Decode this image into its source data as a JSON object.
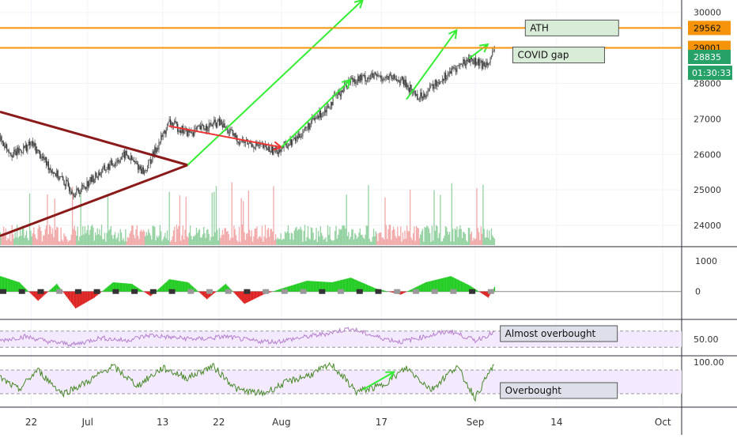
{
  "chart_data": [
    {
      "panel": "price",
      "type": "candlestick",
      "ylim": [
        23400,
        30350
      ],
      "y_ticks": [
        24000,
        25000,
        26000,
        27000,
        28000,
        29000,
        30000
      ],
      "x_ticks": [
        {
          "label": "22",
          "date": "2020-06-22"
        },
        {
          "label": "Jul",
          "date": "2020-07-01"
        },
        {
          "label": "13",
          "date": "2020-07-13"
        },
        {
          "label": "22",
          "date": "2020-07-22"
        },
        {
          "label": "Aug",
          "date": "2020-08-01"
        },
        {
          "label": "17",
          "date": "2020-08-17"
        },
        {
          "label": "Sep",
          "date": "2020-09-01"
        },
        {
          "label": "14",
          "date": "2020-09-14"
        },
        {
          "label": "Oct",
          "date": "2020-10-01"
        }
      ],
      "xlim": [
        "2020-06-17",
        "2020-10-04"
      ],
      "price_path": [
        {
          "date": "2020-06-17",
          "value": 26400
        },
        {
          "date": "2020-06-19",
          "value": 26000
        },
        {
          "date": "2020-06-22",
          "value": 26300
        },
        {
          "date": "2020-06-25",
          "value": 25600
        },
        {
          "date": "2020-06-29",
          "value": 24900
        },
        {
          "date": "2020-07-03",
          "value": 25500
        },
        {
          "date": "2020-07-07",
          "value": 26000
        },
        {
          "date": "2020-07-10",
          "value": 25500
        },
        {
          "date": "2020-07-12",
          "value": 26200
        },
        {
          "date": "2020-07-14",
          "value": 26900
        },
        {
          "date": "2020-07-17",
          "value": 26600
        },
        {
          "date": "2020-07-22",
          "value": 26900
        },
        {
          "date": "2020-07-25",
          "value": 26400
        },
        {
          "date": "2020-07-31",
          "value": 26100
        },
        {
          "date": "2020-08-03",
          "value": 26400
        },
        {
          "date": "2020-08-08",
          "value": 27300
        },
        {
          "date": "2020-08-12",
          "value": 28100
        },
        {
          "date": "2020-08-16",
          "value": 28200
        },
        {
          "date": "2020-08-20",
          "value": 28100
        },
        {
          "date": "2020-08-23",
          "value": 27600
        },
        {
          "date": "2020-08-27",
          "value": 28200
        },
        {
          "date": "2020-08-31",
          "value": 28700
        },
        {
          "date": "2020-09-02",
          "value": 28500
        },
        {
          "date": "2020-09-04",
          "value": 28835
        }
      ],
      "horizontal_levels": [
        {
          "value": 29562,
          "label": "29562",
          "color": "#f5930a"
        },
        {
          "value": 29001,
          "label": "29001",
          "color": "#f5930a"
        }
      ],
      "current_price": {
        "value": 28835,
        "label": "28835",
        "color": "#26a269"
      },
      "countdown": {
        "label": "01:30:33",
        "color": "#26a269"
      },
      "annotations": [
        {
          "text": "ATH",
          "date": "2020-09-09",
          "value": 29562
        },
        {
          "text": "COVID gap",
          "date": "2020-09-07",
          "value": 28800
        }
      ],
      "triangle": {
        "color": "#8b1a1a",
        "upper": [
          {
            "date": "2020-06-17",
            "value": 27200
          },
          {
            "date": "2020-07-17",
            "value": 25700
          }
        ],
        "lower": [
          {
            "date": "2020-06-17",
            "value": 23700
          },
          {
            "date": "2020-07-17",
            "value": 25700
          }
        ]
      },
      "arrows": [
        {
          "color": "#33ee33",
          "from": {
            "date": "2020-07-17",
            "value": 25700
          },
          "to": {
            "date": "2020-08-14",
            "value": 30350
          }
        },
        {
          "color": "#ee3333",
          "from": {
            "date": "2020-07-14",
            "value": 26800
          },
          "to": {
            "date": "2020-08-01",
            "value": 26200
          }
        },
        {
          "color": "#33ee33",
          "from": {
            "date": "2020-08-01",
            "value": 26200
          },
          "to": {
            "date": "2020-08-12",
            "value": 28100
          }
        },
        {
          "color": "#33ee33",
          "from": {
            "date": "2020-08-21",
            "value": 27550
          },
          "to": {
            "date": "2020-08-29",
            "value": 29500
          }
        },
        {
          "color": "#33ee33",
          "from": {
            "date": "2020-08-31",
            "value": 28700
          },
          "to": {
            "date": "2020-09-03",
            "value": 29100
          }
        }
      ],
      "volume_color_up": "#80c990",
      "volume_color_down": "#ef9a9a"
    },
    {
      "panel": "momentum",
      "type": "histogram",
      "ylim": [
        -700,
        1200
      ],
      "y_ticks": [
        0,
        1000
      ],
      "series": [
        {
          "date": "2020-06-17",
          "value": 500
        },
        {
          "date": "2020-06-20",
          "value": 300
        },
        {
          "date": "2020-06-23",
          "value": -300
        },
        {
          "date": "2020-06-26",
          "value": 250
        },
        {
          "date": "2020-06-29",
          "value": -550
        },
        {
          "date": "2020-07-02",
          "value": -200
        },
        {
          "date": "2020-07-05",
          "value": 300
        },
        {
          "date": "2020-07-08",
          "value": 250
        },
        {
          "date": "2020-07-11",
          "value": -150
        },
        {
          "date": "2020-07-14",
          "value": 400
        },
        {
          "date": "2020-07-17",
          "value": 300
        },
        {
          "date": "2020-07-20",
          "value": -250
        },
        {
          "date": "2020-07-23",
          "value": 250
        },
        {
          "date": "2020-07-26",
          "value": -400
        },
        {
          "date": "2020-07-29",
          "value": -100
        },
        {
          "date": "2020-08-01",
          "value": 100
        },
        {
          "date": "2020-08-05",
          "value": 350
        },
        {
          "date": "2020-08-09",
          "value": 300
        },
        {
          "date": "2020-08-12",
          "value": 450
        },
        {
          "date": "2020-08-16",
          "value": 100
        },
        {
          "date": "2020-08-20",
          "value": -100
        },
        {
          "date": "2020-08-24",
          "value": 300
        },
        {
          "date": "2020-08-28",
          "value": 500
        },
        {
          "date": "2020-08-31",
          "value": 200
        },
        {
          "date": "2020-09-03",
          "value": -200
        },
        {
          "date": "2020-09-04",
          "value": 150
        }
      ]
    },
    {
      "panel": "oscillator-1",
      "type": "line",
      "ylim": [
        0,
        100
      ],
      "y_ticks": [
        50
      ],
      "y_tick_labels": [
        "50.00"
      ],
      "band": [
        20,
        80
      ],
      "line_color": "#b57fcc",
      "annotation": {
        "text": "Almost overbought",
        "date": "2020-09-05"
      },
      "series": [
        {
          "date": "2020-06-17",
          "value": 45
        },
        {
          "date": "2020-06-21",
          "value": 60
        },
        {
          "date": "2020-06-25",
          "value": 40
        },
        {
          "date": "2020-06-29",
          "value": 30
        },
        {
          "date": "2020-07-03",
          "value": 55
        },
        {
          "date": "2020-07-07",
          "value": 45
        },
        {
          "date": "2020-07-11",
          "value": 65
        },
        {
          "date": "2020-07-15",
          "value": 55
        },
        {
          "date": "2020-07-19",
          "value": 50
        },
        {
          "date": "2020-07-23",
          "value": 60
        },
        {
          "date": "2020-07-27",
          "value": 45
        },
        {
          "date": "2020-07-31",
          "value": 40
        },
        {
          "date": "2020-08-04",
          "value": 55
        },
        {
          "date": "2020-08-08",
          "value": 70
        },
        {
          "date": "2020-08-12",
          "value": 90
        },
        {
          "date": "2020-08-16",
          "value": 60
        },
        {
          "date": "2020-08-20",
          "value": 40
        },
        {
          "date": "2020-08-24",
          "value": 60
        },
        {
          "date": "2020-08-28",
          "value": 80
        },
        {
          "date": "2020-09-01",
          "value": 45
        },
        {
          "date": "2020-09-04",
          "value": 75
        }
      ]
    },
    {
      "panel": "oscillator-2",
      "type": "line",
      "ylim": [
        0,
        100
      ],
      "y_ticks": [
        100
      ],
      "y_tick_labels": [
        "100.00"
      ],
      "band": [
        20,
        80
      ],
      "line_color": "#4a8a2a",
      "annotation": {
        "text": "Overbought",
        "date": "2020-09-05"
      },
      "arrow": {
        "color": "#33ee33",
        "from": {
          "date": "2020-08-14",
          "value": 30
        },
        "to": {
          "date": "2020-08-19",
          "value": 75
        }
      },
      "series": [
        {
          "date": "2020-06-17",
          "value": 60
        },
        {
          "date": "2020-06-20",
          "value": 30
        },
        {
          "date": "2020-06-23",
          "value": 80
        },
        {
          "date": "2020-06-27",
          "value": 20
        },
        {
          "date": "2020-07-01",
          "value": 50
        },
        {
          "date": "2020-07-05",
          "value": 90
        },
        {
          "date": "2020-07-09",
          "value": 40
        },
        {
          "date": "2020-07-13",
          "value": 85
        },
        {
          "date": "2020-07-17",
          "value": 60
        },
        {
          "date": "2020-07-21",
          "value": 90
        },
        {
          "date": "2020-07-25",
          "value": 30
        },
        {
          "date": "2020-07-29",
          "value": 20
        },
        {
          "date": "2020-08-02",
          "value": 50
        },
        {
          "date": "2020-08-06",
          "value": 70
        },
        {
          "date": "2020-08-09",
          "value": 95
        },
        {
          "date": "2020-08-13",
          "value": 25
        },
        {
          "date": "2020-08-17",
          "value": 40
        },
        {
          "date": "2020-08-21",
          "value": 85
        },
        {
          "date": "2020-08-25",
          "value": 30
        },
        {
          "date": "2020-08-29",
          "value": 90
        },
        {
          "date": "2020-09-01",
          "value": 10
        },
        {
          "date": "2020-09-04",
          "value": 95
        }
      ]
    }
  ]
}
